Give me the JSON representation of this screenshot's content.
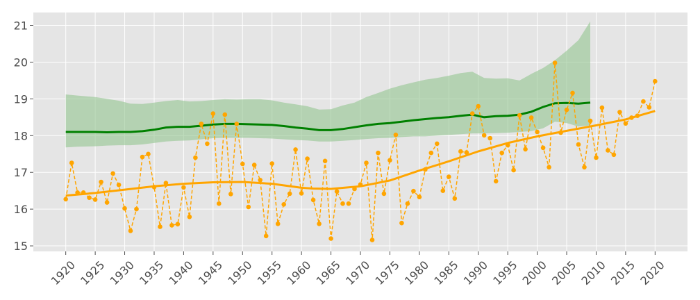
{
  "chart_data": {
    "type": "line",
    "title": "",
    "xlabel": "",
    "ylabel": "",
    "xlim": [
      1914.5,
      2025.5
    ],
    "ylim": [
      14.85,
      21.35
    ],
    "grid": true,
    "legend": "none",
    "colors": {
      "background": "#e5e5e5",
      "grid": "#ffffff",
      "observed": "#ffa500",
      "smooth": "#ffa500",
      "band_line": "#008000",
      "band_fill": "#93c48f"
    },
    "xticks": [
      1920,
      1925,
      1930,
      1935,
      1940,
      1945,
      1950,
      1955,
      1960,
      1965,
      1970,
      1975,
      1980,
      1985,
      1990,
      1995,
      2000,
      2005,
      2010,
      2015,
      2020
    ],
    "xtick_labels": [
      "1920",
      "1925",
      "1930",
      "1935",
      "1940",
      "1945",
      "1950",
      "1955",
      "1960",
      "1965",
      "1970",
      "1975",
      "1980",
      "1985",
      "1990",
      "1995",
      "2000",
      "2005",
      "2010",
      "2015",
      "2020"
    ],
    "yticks": [
      15,
      16,
      17,
      18,
      19,
      20,
      21
    ],
    "ytick_labels": [
      "15",
      "16",
      "17",
      "18",
      "19",
      "20",
      "21"
    ],
    "series": [
      {
        "kind": "observed",
        "x": [
          1920,
          1921,
          1922,
          1923,
          1924,
          1925,
          1926,
          1927,
          1928,
          1929,
          1930,
          1931,
          1932,
          1933,
          1934,
          1935,
          1936,
          1937,
          1938,
          1939,
          1940,
          1941,
          1942,
          1943,
          1944,
          1945,
          1946,
          1947,
          1948,
          1949,
          1950,
          1951,
          1952,
          1953,
          1954,
          1955,
          1956,
          1957,
          1958,
          1959,
          1960,
          1961,
          1962,
          1963,
          1964,
          1965,
          1966,
          1967,
          1968,
          1969,
          1970,
          1971,
          1972,
          1973,
          1974,
          1975,
          1976,
          1977,
          1978,
          1979,
          1980,
          1981,
          1982,
          1983,
          1984,
          1985,
          1986,
          1987,
          1988,
          1989,
          1990,
          1991,
          1992,
          1993,
          1994,
          1995,
          1996,
          1997,
          1998,
          1999,
          2000,
          2001,
          2002,
          2003,
          2004,
          2005,
          2006,
          2007,
          2008,
          2009,
          2010,
          2011,
          2012,
          2013,
          2014,
          2015,
          2016,
          2017,
          2018,
          2019,
          2020
        ],
        "y": [
          16.27,
          17.26,
          16.45,
          16.45,
          16.31,
          16.26,
          16.74,
          16.18,
          16.97,
          16.66,
          16.02,
          15.41,
          16.0,
          17.42,
          17.5,
          16.6,
          15.52,
          16.71,
          15.56,
          15.59,
          16.59,
          15.79,
          17.4,
          18.32,
          17.78,
          18.6,
          16.15,
          18.57,
          16.41,
          18.32,
          17.23,
          16.06,
          17.2,
          16.79,
          15.27,
          17.24,
          15.6,
          16.13,
          16.42,
          17.62,
          16.43,
          17.37,
          16.25,
          15.6,
          17.31,
          15.2,
          16.48,
          16.15,
          16.15,
          16.55,
          16.67,
          17.26,
          15.16,
          17.53,
          16.42,
          17.33,
          18.02,
          15.62,
          16.15,
          16.49,
          16.33,
          17.08,
          17.53,
          17.78,
          16.5,
          16.88,
          16.29,
          17.57,
          17.54,
          18.6,
          18.8,
          18.01,
          17.93,
          16.76,
          17.53,
          17.74,
          17.06,
          18.55,
          17.63,
          18.49,
          18.1,
          17.67,
          17.14,
          19.98,
          18.08,
          18.7,
          19.16,
          17.76,
          17.14,
          18.4,
          17.4,
          18.76,
          17.6,
          17.48,
          18.64,
          18.33,
          18.49,
          18.54,
          18.93,
          18.77,
          19.48
        ]
      },
      {
        "kind": "smooth",
        "x": [
          1920,
          1925,
          1930,
          1935,
          1940,
          1945,
          1950,
          1955,
          1960,
          1962,
          1965,
          1970,
          1975,
          1980,
          1985,
          1990,
          1995,
          2000,
          2005,
          2010,
          2015,
          2020
        ],
        "y": [
          16.37,
          16.44,
          16.53,
          16.62,
          16.69,
          16.73,
          16.74,
          16.69,
          16.58,
          16.56,
          16.55,
          16.62,
          16.78,
          17.05,
          17.3,
          17.57,
          17.8,
          17.98,
          18.13,
          18.28,
          18.44,
          18.67
        ]
      },
      {
        "kind": "band",
        "x": [
          1920,
          1922,
          1925,
          1927,
          1929,
          1931,
          1933,
          1935,
          1937,
          1939,
          1941,
          1943,
          1945,
          1947,
          1949,
          1951,
          1953,
          1955,
          1957,
          1959,
          1961,
          1963,
          1965,
          1967,
          1969,
          1971,
          1973,
          1975,
          1977,
          1979,
          1981,
          1983,
          1985,
          1987,
          1989,
          1991,
          1993,
          1995,
          1997,
          1999,
          2001,
          2003,
          2005,
          2007,
          2009
        ],
        "mean": [
          18.1,
          18.1,
          18.1,
          18.09,
          18.1,
          18.1,
          18.12,
          18.16,
          18.22,
          18.24,
          18.24,
          18.27,
          18.3,
          18.32,
          18.32,
          18.31,
          18.3,
          18.29,
          18.26,
          18.22,
          18.19,
          18.15,
          18.15,
          18.18,
          18.23,
          18.28,
          18.32,
          18.34,
          18.38,
          18.42,
          18.45,
          18.48,
          18.5,
          18.54,
          18.57,
          18.5,
          18.53,
          18.54,
          18.57,
          18.65,
          18.78,
          18.88,
          18.89,
          18.87,
          18.9
        ],
        "upper": [
          19.12,
          19.09,
          19.05,
          19.0,
          18.95,
          18.87,
          18.86,
          18.9,
          18.94,
          18.97,
          18.93,
          18.94,
          18.97,
          18.99,
          18.98,
          18.99,
          18.99,
          18.96,
          18.9,
          18.85,
          18.8,
          18.71,
          18.72,
          18.82,
          18.9,
          19.05,
          19.16,
          19.28,
          19.37,
          19.45,
          19.52,
          19.57,
          19.63,
          19.7,
          19.74,
          19.57,
          19.55,
          19.56,
          19.5,
          19.68,
          19.84,
          20.05,
          20.31,
          20.6,
          21.11
        ],
        "lower": [
          17.68,
          17.7,
          17.71,
          17.73,
          17.74,
          17.74,
          17.76,
          17.8,
          17.84,
          17.86,
          17.87,
          17.9,
          17.93,
          17.94,
          17.94,
          17.94,
          17.93,
          17.92,
          17.9,
          17.88,
          17.87,
          17.84,
          17.84,
          17.86,
          17.88,
          17.91,
          17.93,
          17.94,
          17.96,
          17.98,
          17.98,
          18.0,
          18.02,
          18.04,
          18.06,
          18.06,
          18.07,
          18.08,
          18.1,
          18.12,
          18.2,
          18.38,
          18.34,
          18.25,
          18.28
        ]
      }
    ]
  }
}
